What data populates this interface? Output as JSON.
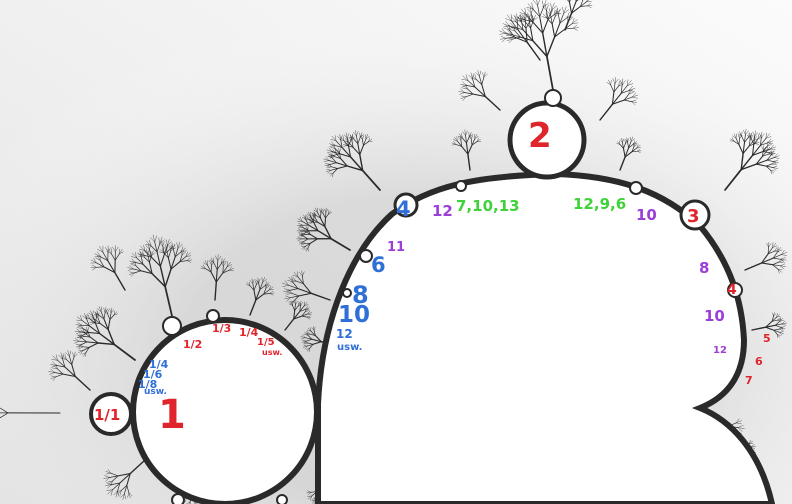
{
  "colors": {
    "red": "#e0242b",
    "blue": "#2f6fd6",
    "purple": "#9b3fd8",
    "green": "#3fd23a",
    "fractal": "#2a2a2a",
    "halo": "#d9d9d9"
  },
  "labels": {
    "l_1_1": "1/1",
    "l_1_big": "1",
    "l_1_2": "1/2",
    "l_1_3": "1/3",
    "l_1_4a": "1/4",
    "l_1_5": "1/5",
    "l_usw_a": "usw.",
    "l_1_4b": "1/4",
    "l_1_6": "1/6",
    "l_1_8": "1/8",
    "l_usw_b": "usw.",
    "l_2": "2",
    "l_3": "3",
    "l_4a": "4",
    "l_4b": "4",
    "l_5": "5",
    "l_6a": "6",
    "l_6b": "6",
    "l_7": "7",
    "l_8a": "8",
    "l_8b": "8",
    "l_10a": "10",
    "l_10b": "10",
    "l_10c": "10",
    "l_11": "11",
    "l_12a": "12",
    "l_12b": "12",
    "l_12c": "12",
    "l_usw_c": "usw.",
    "l_seq1": "7,10,13",
    "l_seq2": "12,9,6"
  }
}
